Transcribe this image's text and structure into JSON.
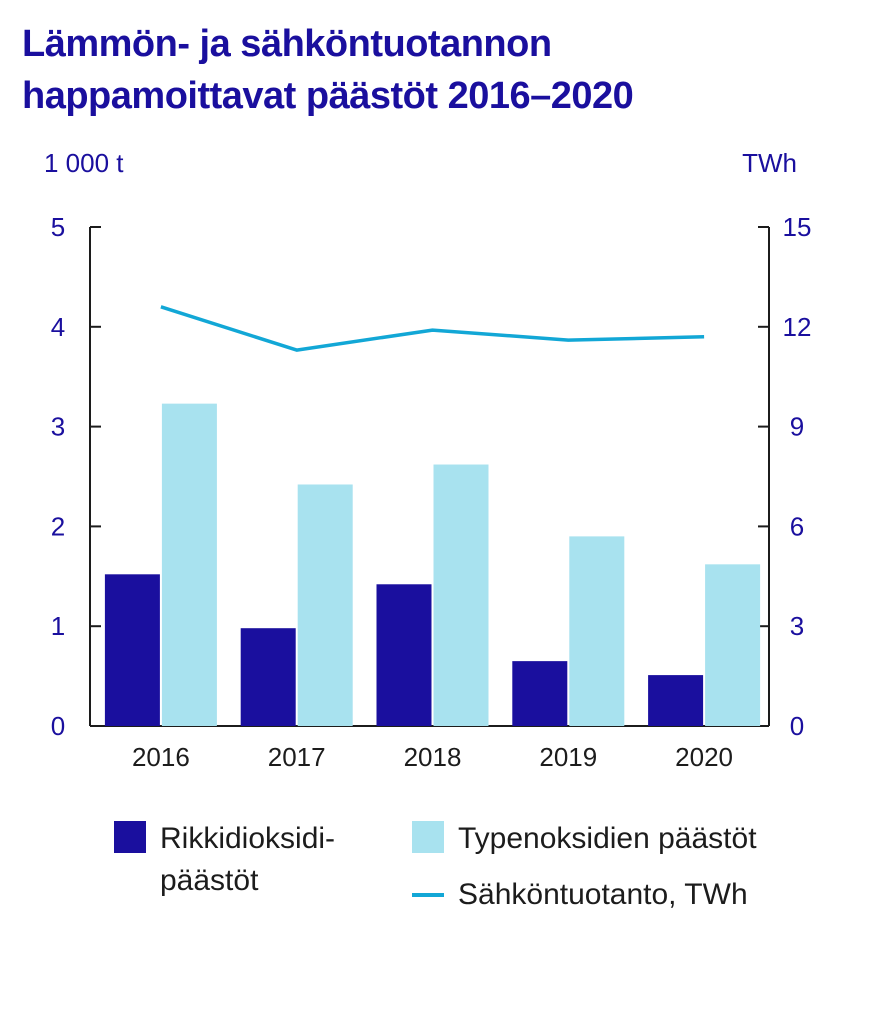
{
  "title": {
    "line1": "Lämmön- ja sähköntuotannon",
    "line2": "happamoittavat päästöt 2016–2020"
  },
  "chart_data": {
    "type": "bar",
    "categories": [
      "2016",
      "2017",
      "2018",
      "2019",
      "2020"
    ],
    "series": [
      {
        "name": "Rikkidioksidipäästöt",
        "type": "bar",
        "axis": "left",
        "color": "#1a0f9e",
        "values": [
          1.52,
          0.98,
          1.42,
          0.65,
          0.51
        ]
      },
      {
        "name": "Typenoksidien päästöt",
        "type": "bar",
        "axis": "left",
        "color": "#a8e2ef",
        "values": [
          3.23,
          2.42,
          2.62,
          1.9,
          1.62
        ]
      },
      {
        "name": "Sähköntuotanto, TWh",
        "type": "line",
        "axis": "right",
        "color": "#12a7d6",
        "values": [
          12.6,
          11.3,
          11.9,
          11.6,
          11.7
        ]
      }
    ],
    "y_left": {
      "unit": "1 000 t",
      "ticks": [
        "0",
        "1",
        "2",
        "3",
        "4",
        "5"
      ],
      "range": [
        0,
        5
      ]
    },
    "y_right": {
      "unit": "TWh",
      "ticks": [
        "0",
        "3",
        "6",
        "9",
        "12",
        "15"
      ],
      "range": [
        0,
        15
      ]
    },
    "grid": false,
    "legend_position": "bottom"
  },
  "legend": {
    "items": [
      {
        "label_line1": "Rikkidioksidi-",
        "label_line2": "päästöt",
        "color": "#1a0f9e"
      },
      {
        "label": "Typenoksidien päästöt",
        "color": "#a8e2ef"
      },
      {
        "label": "Sähköntuotanto, TWh",
        "color": "#12a7d6"
      }
    ]
  },
  "colors": {
    "title": "#1a0f9e",
    "axis": "#1c1c1c",
    "tick_label": "#1a0f9e"
  }
}
